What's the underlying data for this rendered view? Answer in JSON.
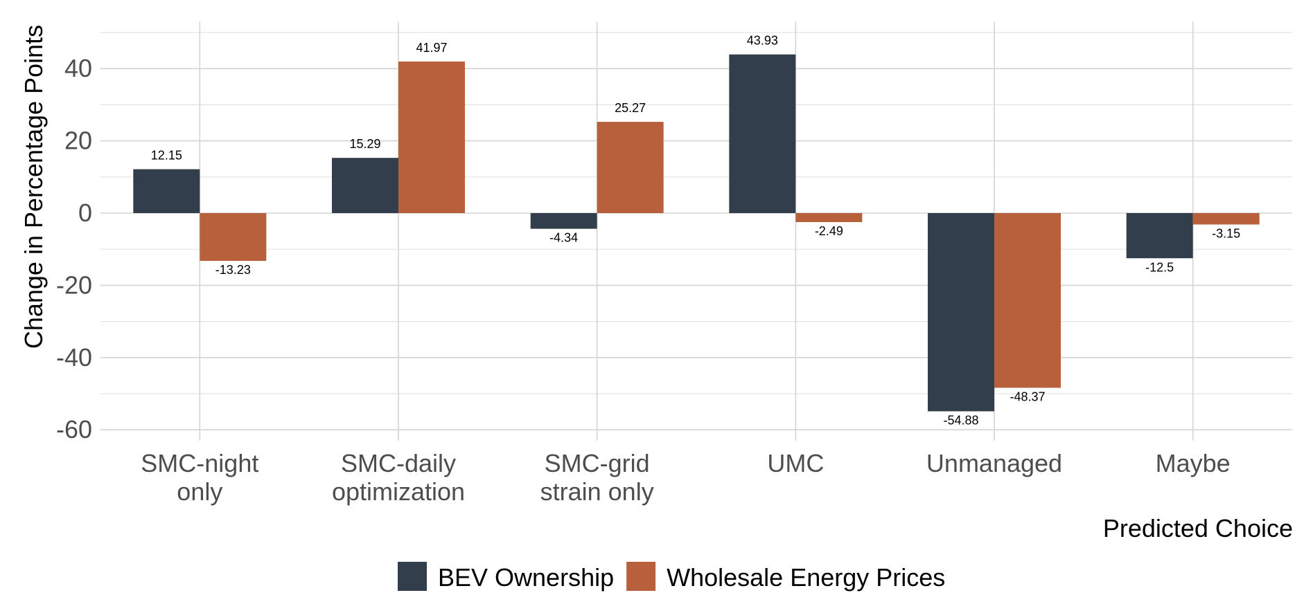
{
  "chart_data": {
    "type": "bar",
    "title": "",
    "xlabel": "Predicted Choice",
    "ylabel": "Change in Percentage Points",
    "categories": [
      [
        "SMC-night",
        "only"
      ],
      [
        "SMC-daily",
        "optimization"
      ],
      [
        "SMC-grid",
        "strain only"
      ],
      [
        "UMC"
      ],
      [
        "Unmanaged"
      ],
      [
        "Maybe"
      ]
    ],
    "series": [
      {
        "name": "BEV Ownership",
        "color": "#323E4B",
        "values": [
          12.15,
          15.29,
          -4.34,
          43.93,
          -54.88,
          -12.5
        ],
        "labels": [
          "12.15",
          "15.29",
          "-4.34",
          "43.93",
          "-54.88",
          "-12.5"
        ]
      },
      {
        "name": "Wholesale Energy Prices",
        "color": "#B8603C",
        "values": [
          -13.23,
          41.97,
          25.27,
          -2.49,
          -48.37,
          -3.15
        ],
        "labels": [
          "-13.23",
          "41.97",
          "25.27",
          "-2.49",
          "-48.37",
          "-3.15"
        ]
      }
    ],
    "ylim": [
      -63,
      53
    ],
    "yticks": [
      40,
      20,
      0,
      -20,
      -40,
      -60
    ],
    "ytick_labels": [
      "40",
      "20",
      "0",
      "-20",
      "-40",
      "-60"
    ],
    "grid": true,
    "legend_position": "bottom"
  }
}
